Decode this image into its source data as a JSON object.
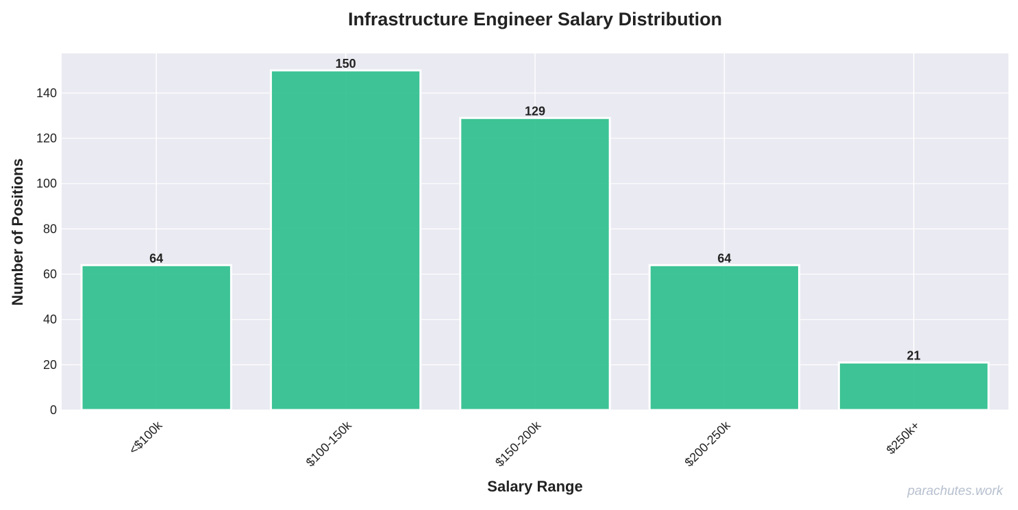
{
  "chart_data": {
    "type": "bar",
    "title": "Infrastructure Engineer Salary Distribution",
    "xlabel": "Salary Range",
    "ylabel": "Number of Positions",
    "categories": [
      "<$100k",
      "$100-150k",
      "$150-200k",
      "$200-250k",
      "$250k+"
    ],
    "values": [
      64,
      150,
      129,
      64,
      21
    ],
    "ylim": [
      0,
      157.5
    ],
    "yticks": [
      0,
      20,
      40,
      60,
      80,
      100,
      120,
      140
    ],
    "grid": true,
    "colors": {
      "bar": "#2ebf8d",
      "bar_edge": "#ffffff",
      "plot_bg": "#eaeaf2",
      "grid": "#ffffff"
    }
  },
  "watermark": "parachutes.work"
}
